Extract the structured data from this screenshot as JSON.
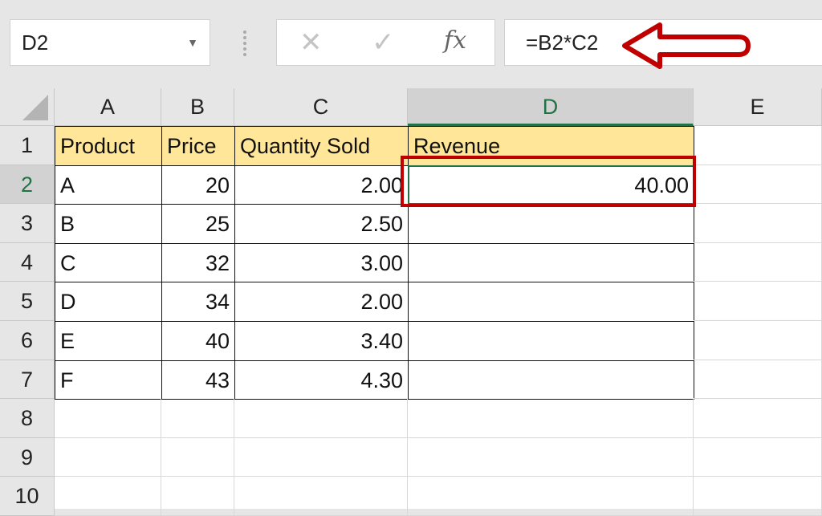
{
  "name_box": {
    "value": "D2",
    "dropdown_icon": "chevron-down-icon"
  },
  "formula_buttons": {
    "cancel_icon": "close-icon",
    "enter_icon": "check-icon",
    "fx_label": "fx"
  },
  "formula_bar": {
    "value": "=B2*C2",
    "annotation": "red-arrow-icon",
    "annotation_color": "#c00000"
  },
  "columns": [
    "A",
    "B",
    "C",
    "D",
    "E"
  ],
  "rows": [
    "1",
    "2",
    "3",
    "4",
    "5",
    "6",
    "7",
    "8",
    "9",
    "10"
  ],
  "selected_cell": "D2",
  "table": {
    "headers": [
      "Product",
      "Price",
      "Quantity Sold",
      "Revenue"
    ],
    "rows": [
      [
        "A",
        "20",
        "2.00",
        "40.00"
      ],
      [
        "B",
        "25",
        "2.50",
        ""
      ],
      [
        "C",
        "32",
        "3.00",
        ""
      ],
      [
        "D",
        "34",
        "2.00",
        ""
      ],
      [
        "E",
        "40",
        "3.40",
        ""
      ],
      [
        "F",
        "43",
        "4.30",
        ""
      ]
    ]
  },
  "colors": {
    "header_fill": "#ffe699",
    "selection": "#217346",
    "highlight": "#c00000"
  }
}
